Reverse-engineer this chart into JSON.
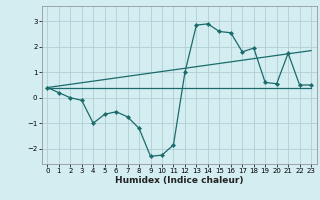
{
  "xlabel": "Humidex (Indice chaleur)",
  "ylabel": "",
  "bg_color": "#d4edf0",
  "grid_color": "#b0ced4",
  "line_color": "#1a6b6b",
  "xlim": [
    -0.5,
    23.5
  ],
  "ylim": [
    -2.6,
    3.6
  ],
  "xticks": [
    0,
    1,
    2,
    3,
    4,
    5,
    6,
    7,
    8,
    9,
    10,
    11,
    12,
    13,
    14,
    15,
    16,
    17,
    18,
    19,
    20,
    21,
    22,
    23
  ],
  "yticks": [
    -2,
    -1,
    0,
    1,
    2,
    3
  ],
  "line1_x": [
    0,
    1,
    2,
    3,
    4,
    5,
    6,
    7,
    8,
    9,
    10,
    11,
    12,
    13,
    14,
    15,
    16,
    17,
    18,
    19,
    20,
    21,
    22,
    23
  ],
  "line1_y": [
    0.4,
    0.2,
    0.0,
    -0.1,
    -1.0,
    -0.65,
    -0.55,
    -0.75,
    -1.2,
    -2.3,
    -2.25,
    -1.85,
    1.0,
    2.85,
    2.9,
    2.6,
    2.55,
    1.8,
    1.95,
    0.6,
    0.55,
    1.75,
    0.5,
    0.5
  ],
  "line2_x": [
    0,
    23
  ],
  "line2_y": [
    0.4,
    1.85
  ],
  "line3_x": [
    0,
    23
  ],
  "line3_y": [
    0.4,
    0.4
  ],
  "tick_fontsize": 5.0,
  "xlabel_fontsize": 6.5,
  "xlabel_fontweight": "bold"
}
